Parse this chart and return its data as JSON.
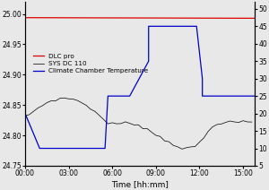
{
  "xlabel": "Time [hh:mm]",
  "ylim_left": [
    24.75,
    25.02
  ],
  "ylim_right": [
    5,
    52
  ],
  "yticks_left": [
    24.75,
    24.8,
    24.85,
    24.9,
    24.95,
    25.0
  ],
  "yticks_right": [
    5,
    10,
    15,
    20,
    25,
    30,
    35,
    40,
    45,
    50
  ],
  "xlim": [
    0,
    15.8
  ],
  "color_dlc": "#dd0000",
  "color_sys": "#111111",
  "color_climate": "#0000cc",
  "bg_color": "#e8e8e8",
  "legend_labels": [
    "DLC pro",
    "SYS DC 110",
    "Climate Chamber Temperature"
  ],
  "xtick_hours": [
    0,
    3,
    6,
    9,
    12,
    15
  ],
  "xtick_labels": [
    "00:00",
    "03:00",
    "06:00",
    "09:00",
    "12:00",
    "15:00"
  ],
  "dlc_t": [
    0,
    15.8
  ],
  "dlc_v": [
    24.994,
    24.993
  ],
  "sys_t": [
    0,
    0.3,
    0.6,
    0.9,
    1.2,
    1.5,
    1.8,
    2.1,
    2.4,
    2.7,
    3.0,
    3.3,
    3.6,
    3.9,
    4.2,
    4.5,
    4.8,
    5.1,
    5.4,
    5.7,
    6.0,
    6.3,
    6.6,
    6.9,
    7.2,
    7.5,
    7.8,
    8.1,
    8.4,
    8.7,
    9.0,
    9.3,
    9.6,
    9.9,
    10.2,
    10.5,
    10.8,
    11.1,
    11.4,
    11.7,
    12.0,
    12.3,
    12.6,
    12.9,
    13.2,
    13.5,
    13.8,
    14.1,
    14.4,
    14.7,
    15.0,
    15.3,
    15.6
  ],
  "sys_v": [
    24.83,
    24.835,
    24.84,
    24.845,
    24.85,
    24.854,
    24.857,
    24.859,
    24.86,
    24.861,
    24.861,
    24.86,
    24.857,
    24.854,
    24.85,
    24.845,
    24.839,
    24.833,
    24.826,
    24.821,
    24.819,
    24.819,
    24.82,
    24.82,
    24.82,
    24.819,
    24.818,
    24.814,
    24.81,
    24.806,
    24.801,
    24.797,
    24.793,
    24.789,
    24.786,
    24.782,
    24.779,
    24.778,
    24.779,
    24.782,
    24.788,
    24.796,
    24.806,
    24.815,
    24.82,
    24.821,
    24.821,
    24.821,
    24.822,
    24.822,
    24.822,
    24.822,
    24.822
  ],
  "climate_t": [
    0,
    1.0,
    2.5,
    2.5,
    5.5,
    5.5,
    5.7,
    5.7,
    7.2,
    7.2,
    8.5,
    8.5,
    9.0,
    9.0,
    11.8,
    11.8,
    12.2,
    12.2,
    13.0,
    13.0,
    15.8
  ],
  "climate_v": [
    20,
    10,
    10,
    10,
    10,
    10,
    25,
    25,
    25,
    25,
    35,
    45,
    45,
    45,
    45,
    45,
    30,
    25,
    25,
    25,
    25
  ]
}
